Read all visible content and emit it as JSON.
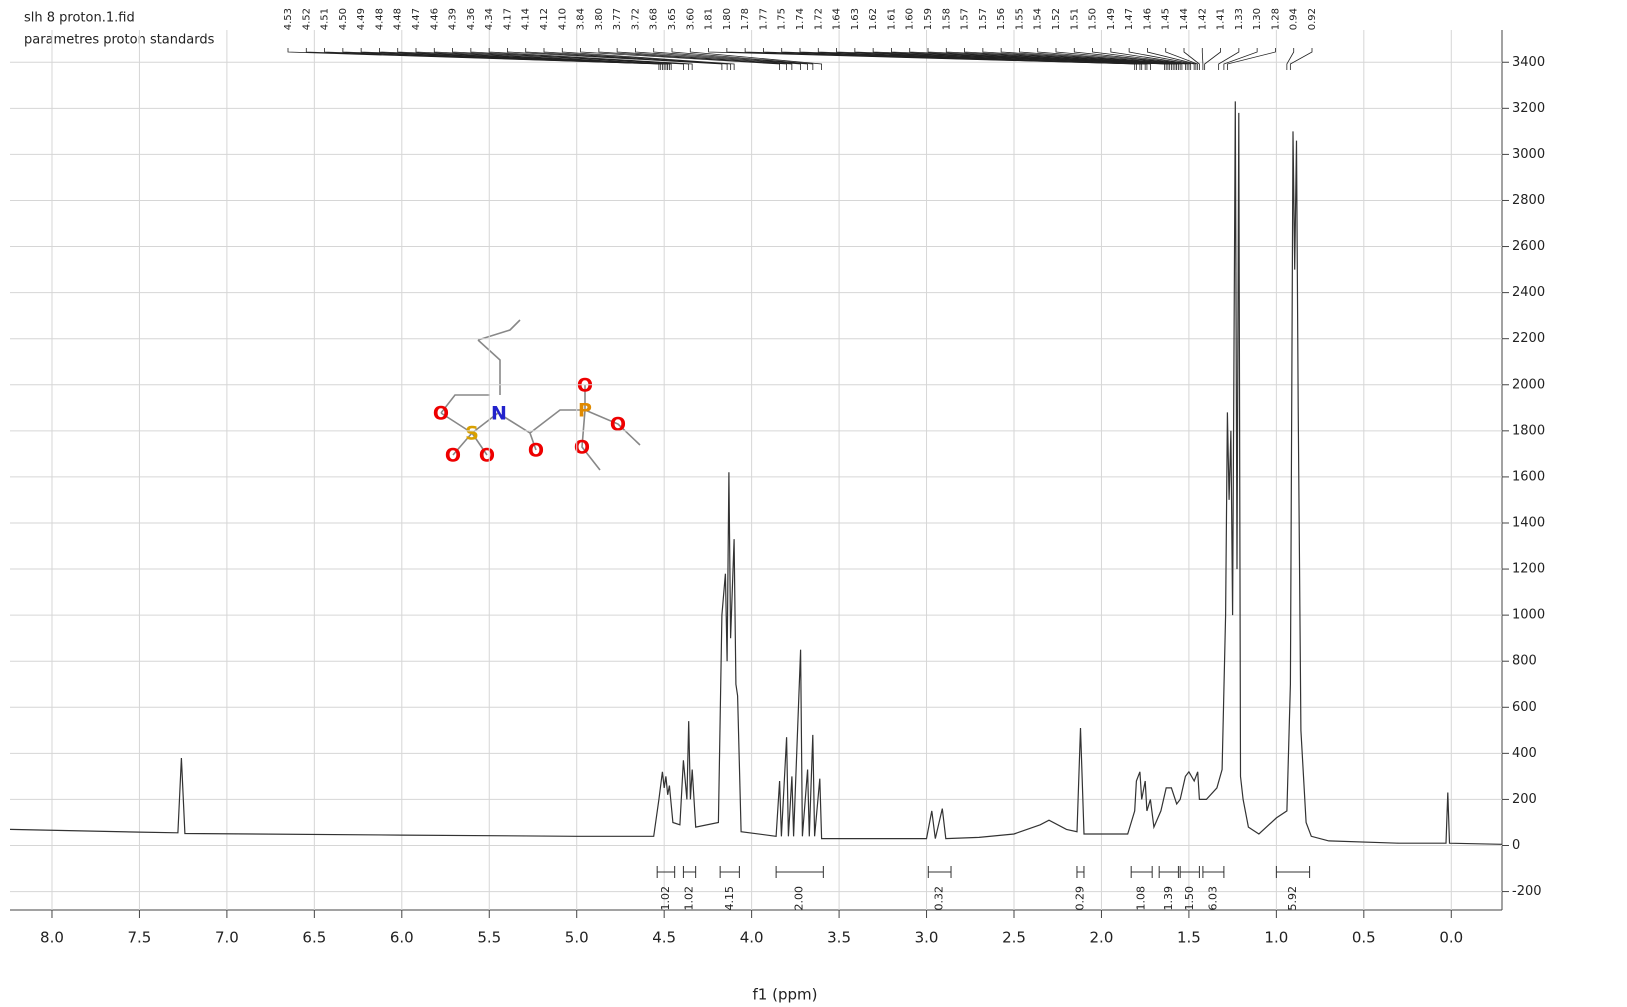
{
  "chart_data": {
    "type": "line",
    "title": "slh 8 proton.1.fid",
    "subtitle": "parametres proton standards",
    "x_label": "f1 (ppm)",
    "color": "#333333",
    "grid": true,
    "xlim": [
      8.24,
      -0.29
    ],
    "ylim": [
      -280,
      3540
    ],
    "xticks": [
      {
        "value": 8,
        "label": "8.0"
      },
      7.5,
      {
        "value": 7,
        "label": "7.0"
      },
      6.5,
      {
        "value": 6,
        "label": "6.0"
      },
      5.5,
      {
        "value": 5,
        "label": "5.0"
      },
      4.5,
      {
        "value": 4,
        "label": "4.0"
      },
      3.5,
      {
        "value": 3,
        "label": "3.0"
      },
      2.5,
      {
        "value": 2,
        "label": "2.0"
      },
      1.5,
      {
        "value": 1,
        "label": "1.0"
      },
      0.5,
      {
        "value": 0,
        "label": "0.0"
      }
    ],
    "yticks": [
      -200,
      0,
      200,
      400,
      600,
      800,
      1000,
      1200,
      1400,
      1600,
      1800,
      2000,
      2200,
      2400,
      2600,
      2800,
      3000,
      3200,
      3400
    ],
    "x": [
      8.24,
      7.5,
      7.28,
      7.26,
      7.24,
      6.0,
      5.0,
      4.56,
      4.53,
      4.51,
      4.5,
      4.49,
      4.48,
      4.47,
      4.45,
      4.41,
      4.39,
      4.37,
      4.36,
      4.35,
      4.34,
      4.32,
      4.19,
      4.17,
      4.15,
      4.14,
      4.13,
      4.12,
      4.1,
      4.09,
      4.08,
      4.06,
      3.86,
      3.84,
      3.83,
      3.8,
      3.79,
      3.77,
      3.76,
      3.72,
      3.71,
      3.68,
      3.67,
      3.65,
      3.64,
      3.61,
      3.6,
      3.0,
      2.97,
      2.95,
      2.91,
      2.89,
      2.7,
      2.5,
      2.35,
      2.3,
      2.2,
      2.14,
      2.12,
      2.1,
      1.85,
      1.81,
      1.8,
      1.78,
      1.77,
      1.75,
      1.74,
      1.72,
      1.7,
      1.66,
      1.63,
      1.6,
      1.57,
      1.55,
      1.52,
      1.5,
      1.47,
      1.45,
      1.44,
      1.4,
      1.34,
      1.31,
      1.29,
      1.28,
      1.27,
      1.26,
      1.25,
      1.235,
      1.225,
      1.215,
      1.205,
      1.19,
      1.16,
      1.1,
      1.0,
      0.94,
      0.92,
      0.905,
      0.895,
      0.885,
      0.875,
      0.86,
      0.83,
      0.8,
      0.7,
      0.3,
      0.03,
      0.02,
      0.01,
      -0.29
    ],
    "values": [
      70,
      58,
      55,
      380,
      52,
      45,
      40,
      40,
      200,
      320,
      250,
      300,
      220,
      260,
      100,
      90,
      370,
      200,
      540,
      200,
      330,
      80,
      100,
      1000,
      1180,
      800,
      1620,
      900,
      1330,
      700,
      650,
      60,
      40,
      280,
      40,
      470,
      40,
      300,
      40,
      850,
      40,
      330,
      40,
      480,
      40,
      290,
      30,
      30,
      150,
      30,
      160,
      30,
      35,
      50,
      90,
      110,
      70,
      60,
      510,
      50,
      50,
      150,
      280,
      320,
      200,
      280,
      150,
      200,
      80,
      150,
      250,
      250,
      180,
      200,
      300,
      320,
      280,
      320,
      200,
      200,
      250,
      330,
      1000,
      1880,
      1500,
      1800,
      1000,
      3230,
      1200,
      3180,
      300,
      200,
      80,
      50,
      120,
      150,
      700,
      3100,
      2500,
      3060,
      1900,
      500,
      100,
      40,
      20,
      10,
      10,
      230,
      10,
      5
    ],
    "peak_labels": [
      {
        "value": 4.53,
        "label": "4.53"
      },
      {
        "value": 4.52,
        "label": "4.52"
      },
      {
        "value": 4.51,
        "label": "4.51"
      },
      {
        "value": 4.5,
        "label": "4.50"
      },
      {
        "value": 4.49,
        "label": "4.49"
      },
      {
        "value": 4.48,
        "label": "4.48"
      },
      {
        "value": 4.48,
        "label": "4.48"
      },
      {
        "value": 4.47,
        "label": "4.47"
      },
      {
        "value": 4.46,
        "label": "4.46"
      },
      {
        "value": 4.39,
        "label": "4.39"
      },
      {
        "value": 4.36,
        "label": "4.36"
      },
      {
        "value": 4.34,
        "label": "4.34"
      },
      {
        "value": 4.17,
        "label": "4.17"
      },
      {
        "value": 4.14,
        "label": "4.14"
      },
      {
        "value": 4.12,
        "label": "4.12"
      },
      {
        "value": 4.1,
        "label": "4.10"
      },
      {
        "value": 3.84,
        "label": "3.84"
      },
      {
        "value": 3.8,
        "label": "3.80"
      },
      {
        "value": 3.77,
        "label": "3.77"
      },
      {
        "value": 3.72,
        "label": "3.72"
      },
      {
        "value": 3.68,
        "label": "3.68"
      },
      {
        "value": 3.65,
        "label": "3.65"
      },
      {
        "value": 3.6,
        "label": "3.60"
      },
      {
        "value": 1.81,
        "label": "1.81"
      },
      {
        "value": 1.8,
        "label": "1.80"
      },
      {
        "value": 1.78,
        "label": "1.78"
      },
      {
        "value": 1.77,
        "label": "1.77"
      },
      {
        "value": 1.75,
        "label": "1.75"
      },
      {
        "value": 1.74,
        "label": "1.74"
      },
      {
        "value": 1.72,
        "label": "1.72"
      },
      {
        "value": 1.64,
        "label": "1.64"
      },
      {
        "value": 1.63,
        "label": "1.63"
      },
      {
        "value": 1.62,
        "label": "1.62"
      },
      {
        "value": 1.61,
        "label": "1.61"
      },
      {
        "value": 1.6,
        "label": "1.60"
      },
      {
        "value": 1.59,
        "label": "1.59"
      },
      {
        "value": 1.58,
        "label": "1.58"
      },
      {
        "value": 1.57,
        "label": "1.57"
      },
      {
        "value": 1.57,
        "label": "1.57"
      },
      {
        "value": 1.56,
        "label": "1.56"
      },
      {
        "value": 1.55,
        "label": "1.55"
      },
      {
        "value": 1.54,
        "label": "1.54"
      },
      {
        "value": 1.52,
        "label": "1.52"
      },
      {
        "value": 1.51,
        "label": "1.51"
      },
      {
        "value": 1.5,
        "label": "1.50"
      },
      {
        "value": 1.49,
        "label": "1.49"
      },
      {
        "value": 1.47,
        "label": "1.47"
      },
      {
        "value": 1.46,
        "label": "1.46"
      },
      {
        "value": 1.45,
        "label": "1.45"
      },
      {
        "value": 1.44,
        "label": "1.44"
      },
      {
        "value": 1.42,
        "label": "1.42"
      },
      {
        "value": 1.41,
        "label": "1.41"
      },
      {
        "value": 1.33,
        "label": "1.33"
      },
      {
        "value": 1.3,
        "label": "1.30"
      },
      {
        "value": 1.28,
        "label": "1.28"
      },
      {
        "value": 0.94,
        "label": "0.94"
      },
      {
        "value": 0.92,
        "label": "0.92"
      }
    ],
    "integrals": [
      {
        "value": 1.02,
        "label": "1.02",
        "from": 4.54,
        "to": 4.44
      },
      {
        "value": 1.02,
        "label": "1.02",
        "from": 4.39,
        "to": 4.32
      },
      {
        "value": 4.15,
        "label": "4.15",
        "from": 4.18,
        "to": 4.07
      },
      {
        "value": 2,
        "label": "2.00",
        "from": 3.86,
        "to": 3.59
      },
      {
        "value": 0.32,
        "label": "0.32",
        "from": 2.99,
        "to": 2.86
      },
      {
        "value": 0.29,
        "label": "0.29",
        "from": 2.14,
        "to": 2.1
      },
      {
        "value": 1.08,
        "label": "1.08",
        "from": 1.83,
        "to": 1.71
      },
      {
        "value": 1.39,
        "label": "1.39",
        "from": 1.67,
        "to": 1.56
      },
      {
        "value": 1.5,
        "label": "1.50",
        "from": 1.55,
        "to": 1.44
      },
      {
        "value": 6.03,
        "label": "6.03",
        "from": 1.42,
        "to": 1.3
      },
      {
        "value": 5.92,
        "label": "5.92",
        "from": 1.0,
        "to": 0.81
      }
    ],
    "structure_atoms": [
      "O",
      "N",
      "S",
      "O",
      "O",
      "O",
      "P",
      "O",
      "O",
      "O"
    ]
  }
}
